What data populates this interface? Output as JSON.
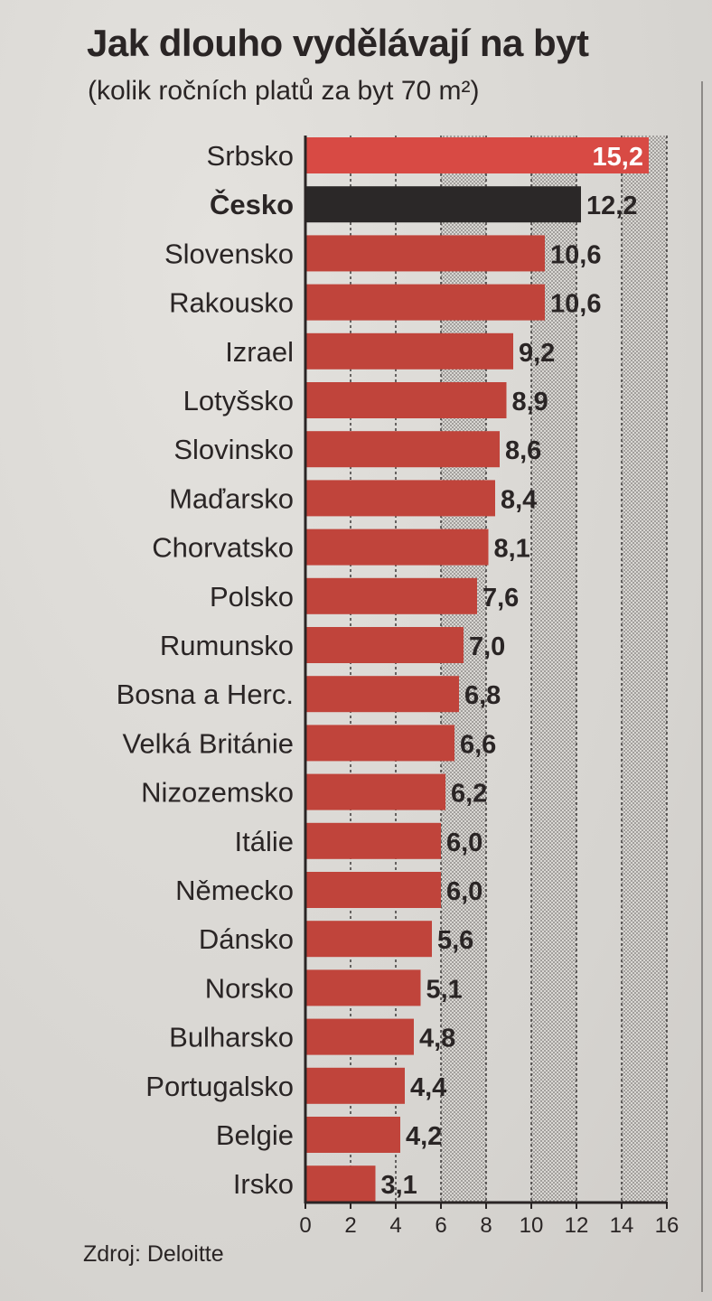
{
  "header": {
    "title": "Jak dlouho vydělávají na byt",
    "subtitle": "(kolik ročních platů za byt 70 m²)"
  },
  "footer": {
    "source": "Zdroj: Deloitte"
  },
  "colors": {
    "bar": "#c0443b",
    "highlight_bar": "#2b2828",
    "first_bar": "#d84a44"
  },
  "chart_data": {
    "type": "bar",
    "orientation": "horizontal",
    "categories": [
      "Srbsko",
      "Česko",
      "Slovensko",
      "Rakousko",
      "Izrael",
      "Lotyšsko",
      "Slovinsko",
      "Maďarsko",
      "Chorvatsko",
      "Polsko",
      "Rumunsko",
      "Bosna a Herc.",
      "Velká Británie",
      "Nizozemsko",
      "Itálie",
      "Německo",
      "Dánsko",
      "Norsko",
      "Bulharsko",
      "Portugalsko",
      "Belgie",
      "Irsko"
    ],
    "values": [
      15.2,
      12.2,
      10.6,
      10.6,
      9.2,
      8.9,
      8.6,
      8.4,
      8.1,
      7.6,
      7.0,
      6.8,
      6.6,
      6.2,
      6.0,
      6.0,
      5.6,
      5.1,
      4.8,
      4.4,
      4.2,
      3.1
    ],
    "value_labels": [
      "15,2",
      "12,2",
      "10,6",
      "10,6",
      "9,2",
      "8,9",
      "8,6",
      "8,4",
      "8,1",
      "7,6",
      "7,0",
      "6,8",
      "6,6",
      "6,2",
      "6,0",
      "6,0",
      "5,6",
      "5,1",
      "4,8",
      "4,4",
      "4,2",
      "3,1"
    ],
    "highlight": "Česko",
    "xlim": [
      0,
      16
    ],
    "xticks": [
      0,
      2,
      4,
      6,
      8,
      10,
      12,
      14,
      16
    ],
    "grid": true,
    "title": "Jak dlouho vydělávají na byt",
    "subtitle": "(kolik ročních platů za byt 70 m²)",
    "xlabel": "",
    "ylabel": ""
  }
}
